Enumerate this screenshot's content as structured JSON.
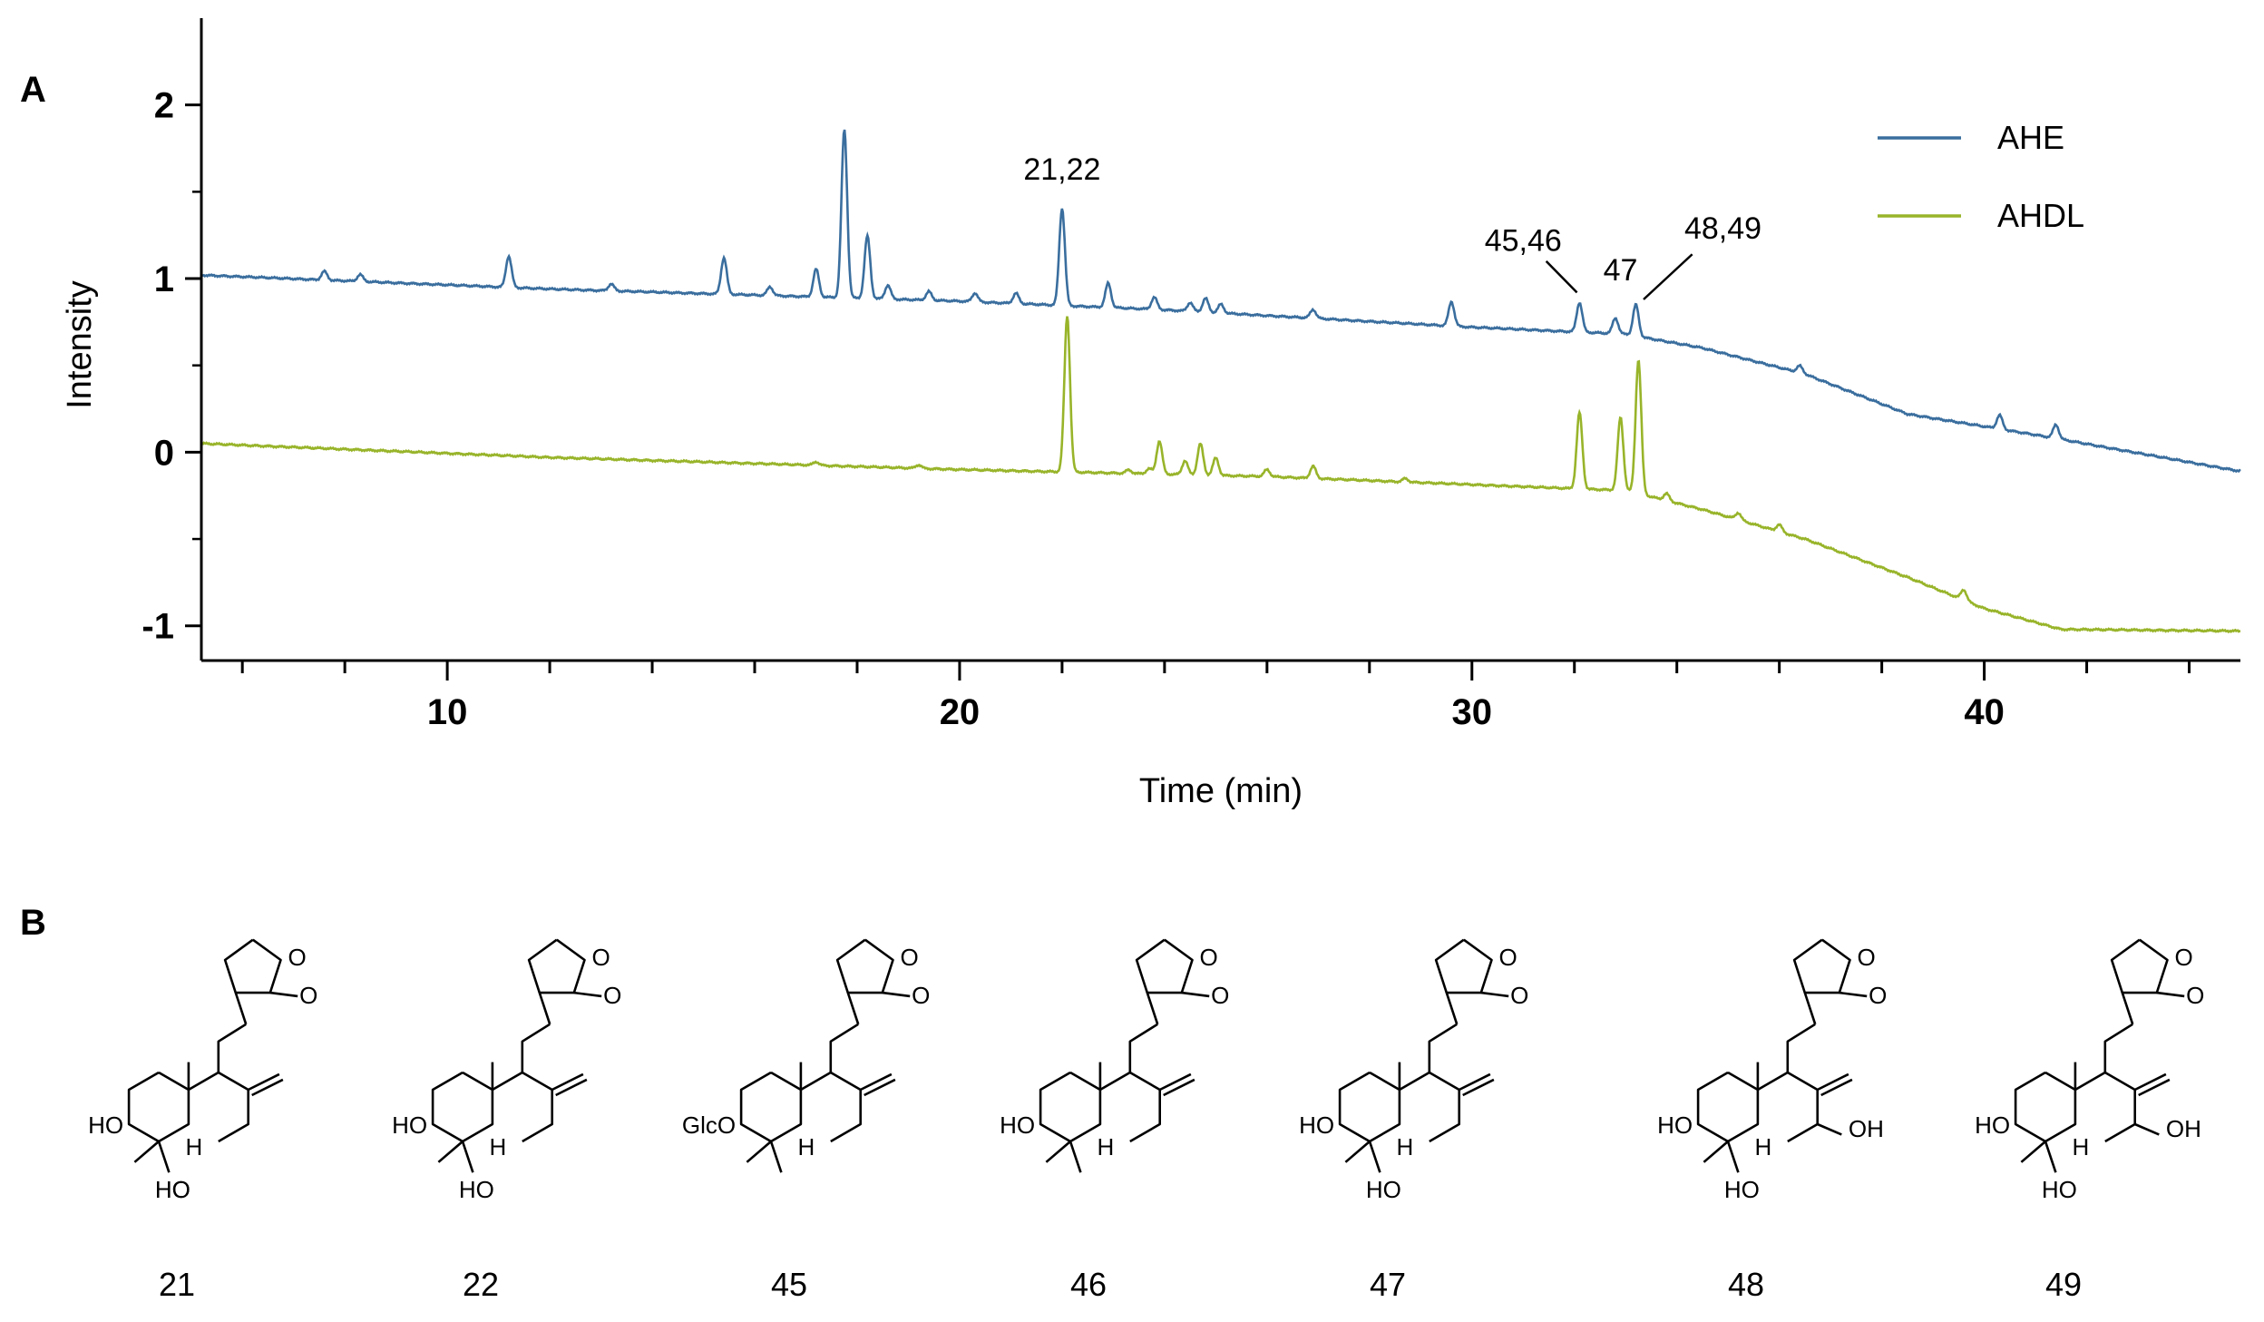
{
  "panel_a_label": "A",
  "panel_b_label": "B",
  "chart_data": {
    "type": "line",
    "title": "",
    "xlabel": "Time (min)",
    "ylabel": "Intensity",
    "xlim": [
      5.2,
      45
    ],
    "ylim": [
      -1.2,
      2.5
    ],
    "xticks": [
      10,
      20,
      30,
      40
    ],
    "yticks": [
      -1,
      0,
      1,
      2
    ],
    "grid": false,
    "legend": "top-right",
    "series": [
      {
        "name": "AHE",
        "color": "#3a6e9e",
        "baseline": [
          [
            5.2,
            1.02
          ],
          [
            12,
            0.94
          ],
          [
            20,
            0.87
          ],
          [
            24,
            0.82
          ],
          [
            30,
            0.72
          ],
          [
            33,
            0.68
          ],
          [
            34.5,
            0.6
          ],
          [
            36.5,
            0.45
          ],
          [
            38.5,
            0.22
          ],
          [
            41,
            0.1
          ],
          [
            45,
            -0.11
          ]
        ],
        "peaks": [
          {
            "x": 7.6,
            "height": 0.05
          },
          {
            "x": 8.3,
            "height": 0.04
          },
          {
            "x": 11.2,
            "height": 0.18
          },
          {
            "x": 13.2,
            "height": 0.04
          },
          {
            "x": 15.4,
            "height": 0.21
          },
          {
            "x": 16.3,
            "height": 0.05
          },
          {
            "x": 17.2,
            "height": 0.16
          },
          {
            "x": 17.75,
            "height": 0.97
          },
          {
            "x": 18.2,
            "height": 0.36
          },
          {
            "x": 18.6,
            "height": 0.08
          },
          {
            "x": 19.4,
            "height": 0.05
          },
          {
            "x": 20.3,
            "height": 0.05
          },
          {
            "x": 21.1,
            "height": 0.06
          },
          {
            "x": 22.0,
            "height": 0.56
          },
          {
            "x": 22.9,
            "height": 0.14
          },
          {
            "x": 23.8,
            "height": 0.07
          },
          {
            "x": 24.5,
            "height": 0.05
          },
          {
            "x": 24.8,
            "height": 0.08
          },
          {
            "x": 25.1,
            "height": 0.05
          },
          {
            "x": 26.9,
            "height": 0.05
          },
          {
            "x": 29.6,
            "height": 0.14
          },
          {
            "x": 32.1,
            "height": 0.17
          },
          {
            "x": 32.8,
            "height": 0.09
          },
          {
            "x": 33.2,
            "height": 0.18
          },
          {
            "x": 36.4,
            "height": 0.04
          },
          {
            "x": 40.3,
            "height": 0.08
          },
          {
            "x": 41.4,
            "height": 0.08
          }
        ]
      },
      {
        "name": "AHDL",
        "color": "#98b42a",
        "baseline": [
          [
            5.2,
            0.05
          ],
          [
            12,
            -0.03
          ],
          [
            20,
            -0.1
          ],
          [
            26,
            -0.14
          ],
          [
            32,
            -0.21
          ],
          [
            33,
            -0.22
          ],
          [
            34.5,
            -0.33
          ],
          [
            36.5,
            -0.5
          ],
          [
            38.5,
            -0.72
          ],
          [
            40,
            -0.9
          ],
          [
            41.5,
            -1.02
          ],
          [
            45,
            -1.03
          ]
        ],
        "peaks": [
          {
            "x": 17.2,
            "height": 0.02
          },
          {
            "x": 19.2,
            "height": 0.02
          },
          {
            "x": 22.1,
            "height": 0.9
          },
          {
            "x": 23.3,
            "height": 0.02
          },
          {
            "x": 23.7,
            "height": 0.03
          },
          {
            "x": 23.9,
            "height": 0.19
          },
          {
            "x": 24.4,
            "height": 0.08
          },
          {
            "x": 24.7,
            "height": 0.18
          },
          {
            "x": 25.0,
            "height": 0.1
          },
          {
            "x": 26.0,
            "height": 0.04
          },
          {
            "x": 26.9,
            "height": 0.07
          },
          {
            "x": 28.7,
            "height": 0.02
          },
          {
            "x": 32.1,
            "height": 0.44
          },
          {
            "x": 32.9,
            "height": 0.42
          },
          {
            "x": 33.25,
            "height": 0.77
          },
          {
            "x": 33.8,
            "height": 0.04
          },
          {
            "x": 35.2,
            "height": 0.04
          },
          {
            "x": 36.0,
            "height": 0.04
          },
          {
            "x": 39.6,
            "height": 0.06
          }
        ]
      }
    ],
    "annotations": [
      {
        "text": "21,22",
        "x": 22.0,
        "y": 1.57
      },
      {
        "text": "45,46",
        "x": 31.0,
        "y": 1.16
      },
      {
        "text": "47",
        "x": 32.9,
        "y": 0.99
      },
      {
        "text": "48,49",
        "x": 34.9,
        "y": 1.23
      }
    ]
  },
  "compounds": [
    {
      "label": "21",
      "substituents": [
        "HO",
        "HO",
        "HO",
        "H",
        "O"
      ]
    },
    {
      "label": "22",
      "substituents": [
        "HO",
        "HO",
        "H",
        "O"
      ]
    },
    {
      "label": "45",
      "substituents": [
        "GlcO",
        "H",
        "O"
      ]
    },
    {
      "label": "46",
      "substituents": [
        "HO",
        "O"
      ]
    },
    {
      "label": "47",
      "substituents": [
        "HO",
        "HO",
        "H",
        "O"
      ]
    },
    {
      "label": "48",
      "substituents": [
        "HO",
        "HO",
        "H",
        "OH",
        "O"
      ]
    },
    {
      "label": "49",
      "substituents": [
        "HO",
        "HO",
        "H",
        "OH",
        "O"
      ]
    }
  ]
}
